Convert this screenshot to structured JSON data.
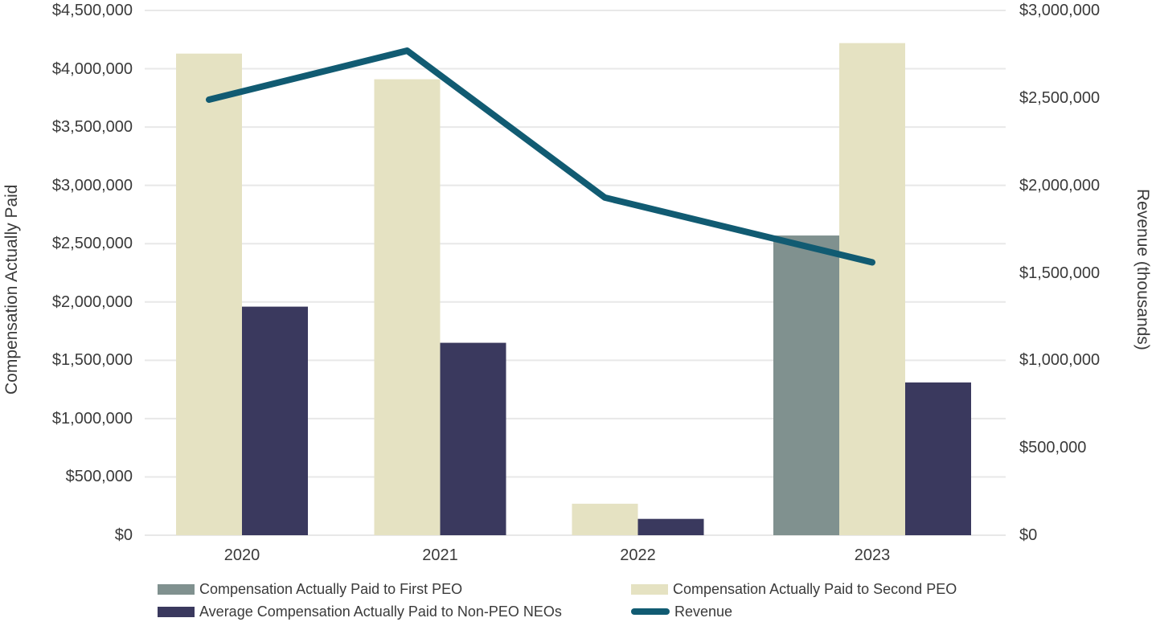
{
  "chart_data": {
    "type": "combo",
    "title": "",
    "categories": [
      "2020",
      "2021",
      "2022",
      "2023"
    ],
    "series": [
      {
        "name": "Compensation Actually Paid to First PEO",
        "type": "bar",
        "axis": "left",
        "color": "#80918f",
        "values": [
          null,
          null,
          null,
          2570000
        ]
      },
      {
        "name": "Compensation Actually Paid to Second PEO",
        "type": "bar",
        "axis": "left",
        "color": "#e5e2c2",
        "values": [
          4130000,
          3910000,
          270000,
          4220000
        ]
      },
      {
        "name": "Average Compensation Actually Paid to Non-PEO NEOs",
        "type": "bar",
        "axis": "left",
        "color": "#3a395e",
        "values": [
          1960000,
          1650000,
          140000,
          1310000
        ]
      },
      {
        "name": "Revenue",
        "type": "line",
        "axis": "right",
        "color": "#115b72",
        "values": [
          2490000,
          2770000,
          1930000,
          1560000
        ]
      }
    ],
    "left_axis": {
      "title": "Compensation Actually Paid",
      "max": 4500000,
      "min": 0,
      "tick_step": 500000,
      "ticks": [
        "$4,500,000",
        "$4,000,000",
        "$3,500,000",
        "$3,000,000",
        "$2,500,000",
        "$2,000,000",
        "$1,500,000",
        "$1,000,000",
        "$500,000",
        "$0"
      ]
    },
    "right_axis": {
      "title": "Revenue (thousands)",
      "max": 3000000,
      "min": 0,
      "tick_step": 500000,
      "ticks": [
        "$3,000,000",
        "$2,500,000",
        "$2,000,000",
        "$1,500,000",
        "$1,000,000",
        "$500,000",
        "$0"
      ]
    },
    "x_axis": {
      "labels": [
        "2020",
        "2021",
        "2022",
        "2023"
      ]
    },
    "legend": [
      {
        "label": "Compensation Actually Paid to First PEO",
        "swatch": "bar",
        "color": "#80918f",
        "col": 0,
        "row": 0
      },
      {
        "label": "Compensation Actually Paid to Second PEO",
        "swatch": "bar",
        "color": "#e5e2c2",
        "col": 1,
        "row": 0
      },
      {
        "label": "Average Compensation Actually Paid to Non-PEO NEOs",
        "swatch": "bar",
        "color": "#3a395e",
        "col": 0,
        "row": 1
      },
      {
        "label": "Revenue",
        "swatch": "line",
        "color": "#115b72",
        "col": 1,
        "row": 1
      }
    ],
    "grid": {
      "show": true,
      "color": "#e8e8e8"
    },
    "colors": {
      "first_peo_bar": "#80918f",
      "second_peo_bar": "#e5e2c2",
      "non_peo_bar": "#3a395e",
      "revenue_line": "#115b72",
      "gridline": "#e8e8e8",
      "text": "#3a3a3a"
    }
  }
}
